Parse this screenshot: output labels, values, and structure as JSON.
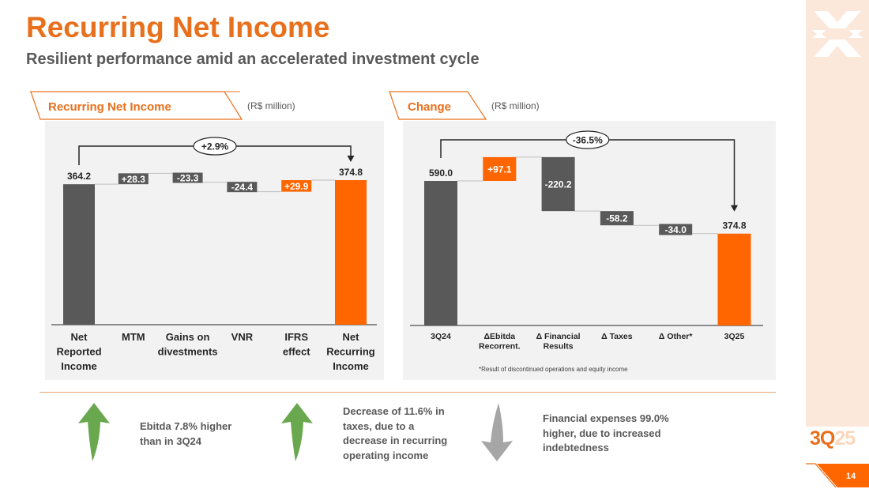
{
  "header": {
    "title": "Recurring Net Income",
    "subtitle": "Resilient performance amid an accelerated investment cycle"
  },
  "colors": {
    "accent": "#ff6600",
    "dark": "#595959",
    "title": "#e8701c"
  },
  "left_panel": {
    "tab_label": "Recurring Net Income",
    "unit": "(R$ million)"
  },
  "right_panel": {
    "tab_label": "Change",
    "unit": "(R$ million)",
    "footnote": "*Result of discontinued operations and equity income"
  },
  "chart_data": [
    {
      "type": "waterfall",
      "title": "Recurring Net Income",
      "unit": "(R$ million)",
      "ylim": [
        0,
        374.8
      ],
      "categories": [
        "Net\nReported\nIncome",
        "MTM",
        "Gains on\ndivestments",
        "VNR",
        "IFRS\neffect",
        "Net\nRecurring\nIncome"
      ],
      "values": [
        364.2,
        28.3,
        -23.3,
        -24.4,
        29.9,
        374.8
      ],
      "labels": [
        "364.2",
        "+28.3",
        "-23.3",
        "-24.4",
        "+29.9",
        "374.8"
      ],
      "kinds": [
        "total",
        "delta",
        "delta",
        "delta",
        "delta",
        "total"
      ],
      "colors": [
        "#595959",
        "#595959",
        "#595959",
        "#595959",
        "#ff6600",
        "#ff6600"
      ],
      "change_annotation": "+2.9%"
    },
    {
      "type": "waterfall",
      "title": "Change",
      "unit": "(R$ million)",
      "ylim": [
        0,
        590.0
      ],
      "categories": [
        "3Q24",
        "ΔEbitda\nRecorrent.",
        "Δ  Financial\nResults",
        "Δ  Taxes",
        "Δ  Other*",
        "3Q25"
      ],
      "values": [
        590.0,
        97.1,
        -220.2,
        -58.2,
        -34.0,
        374.8
      ],
      "labels": [
        "590.0",
        "+97.1",
        "-220.2",
        "-58.2",
        "-34.0",
        "374.8"
      ],
      "kinds": [
        "total",
        "delta",
        "delta",
        "delta",
        "delta",
        "total"
      ],
      "colors": [
        "#595959",
        "#ff6600",
        "#595959",
        "#595959",
        "#595959",
        "#ff6600"
      ],
      "change_annotation": "-36.5%"
    }
  ],
  "highlights": [
    {
      "text": "Ebitda 7.8% higher\nthan in 3Q24",
      "direction": "up"
    },
    {
      "text": "Decrease of 11.6% in\ntaxes, due to a\ndecrease in recurring\noperating income",
      "direction": "up"
    },
    {
      "text": "Financial expenses 99.0%\nhigher, due to increased\nindebtedness",
      "direction": "down"
    }
  ],
  "footer": {
    "quarter_main": "3Q",
    "quarter_year": "25",
    "page_number": "14"
  }
}
